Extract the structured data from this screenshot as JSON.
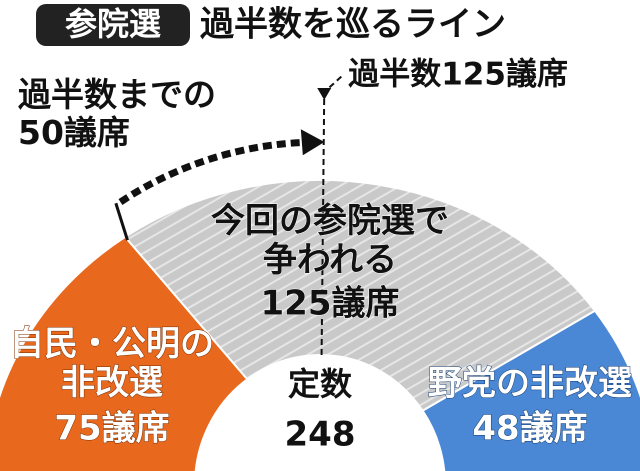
{
  "chart_data": {
    "type": "half-donut",
    "badge": "参院選",
    "title": "過半数を巡るライン",
    "categories": [
      "自民・公明の\n非改選",
      "今回の参院選で\n争われる",
      "野党の非改選"
    ],
    "values": [
      75,
      125,
      48
    ],
    "value_labels": [
      "75議席",
      "125議席",
      "48議席"
    ],
    "colors": [
      "#e8691e",
      "#c9c9c9",
      "#4a88d6"
    ],
    "total_label": "定数",
    "total": 248,
    "majority_line": {
      "value": 125,
      "label": "過半数125議席"
    },
    "arrow_label": "過半数までの\n50議席"
  }
}
